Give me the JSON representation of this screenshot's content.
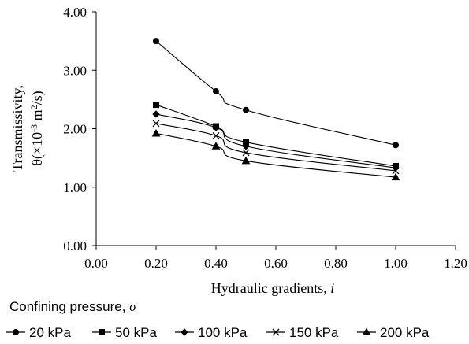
{
  "chart_data": {
    "type": "line",
    "title": "",
    "xlabel": "Hydraulic gradients, ",
    "xlabel_symbol": "i",
    "ylabel_line1": "Transmissivity,",
    "ylabel_line2_prefix": "θ(×10",
    "ylabel_exp1": "-3",
    "ylabel_mid": " m",
    "ylabel_exp2": "2",
    "ylabel_suffix": "/s)",
    "xlim": [
      0.0,
      1.2
    ],
    "ylim": [
      0.0,
      4.0
    ],
    "xticks": [
      "0.00",
      "0.20",
      "0.40",
      "0.60",
      "0.80",
      "1.00",
      "1.20"
    ],
    "yticks": [
      "0.00",
      "1.00",
      "2.00",
      "3.00",
      "4.00"
    ],
    "x": [
      0.2,
      0.4,
      0.5,
      1.0
    ],
    "series": [
      {
        "name": "20 kPa",
        "marker": "circle",
        "values": [
          3.5,
          2.64,
          2.32,
          1.72
        ]
      },
      {
        "name": "50 kPa",
        "marker": "square",
        "values": [
          2.41,
          2.04,
          1.77,
          1.36
        ]
      },
      {
        "name": "100 kPa",
        "marker": "diamond",
        "values": [
          2.25,
          2.02,
          1.7,
          1.33
        ]
      },
      {
        "name": "150 kPa",
        "marker": "cross",
        "values": [
          2.09,
          1.88,
          1.59,
          1.28
        ]
      },
      {
        "name": "200 kPa",
        "marker": "triangle",
        "values": [
          1.92,
          1.7,
          1.45,
          1.17
        ]
      }
    ],
    "grid": false,
    "line_color": "#000000",
    "legend_title": "Confining pressure, ",
    "legend_title_symbol": "σ",
    "legend_position": "bottom"
  }
}
